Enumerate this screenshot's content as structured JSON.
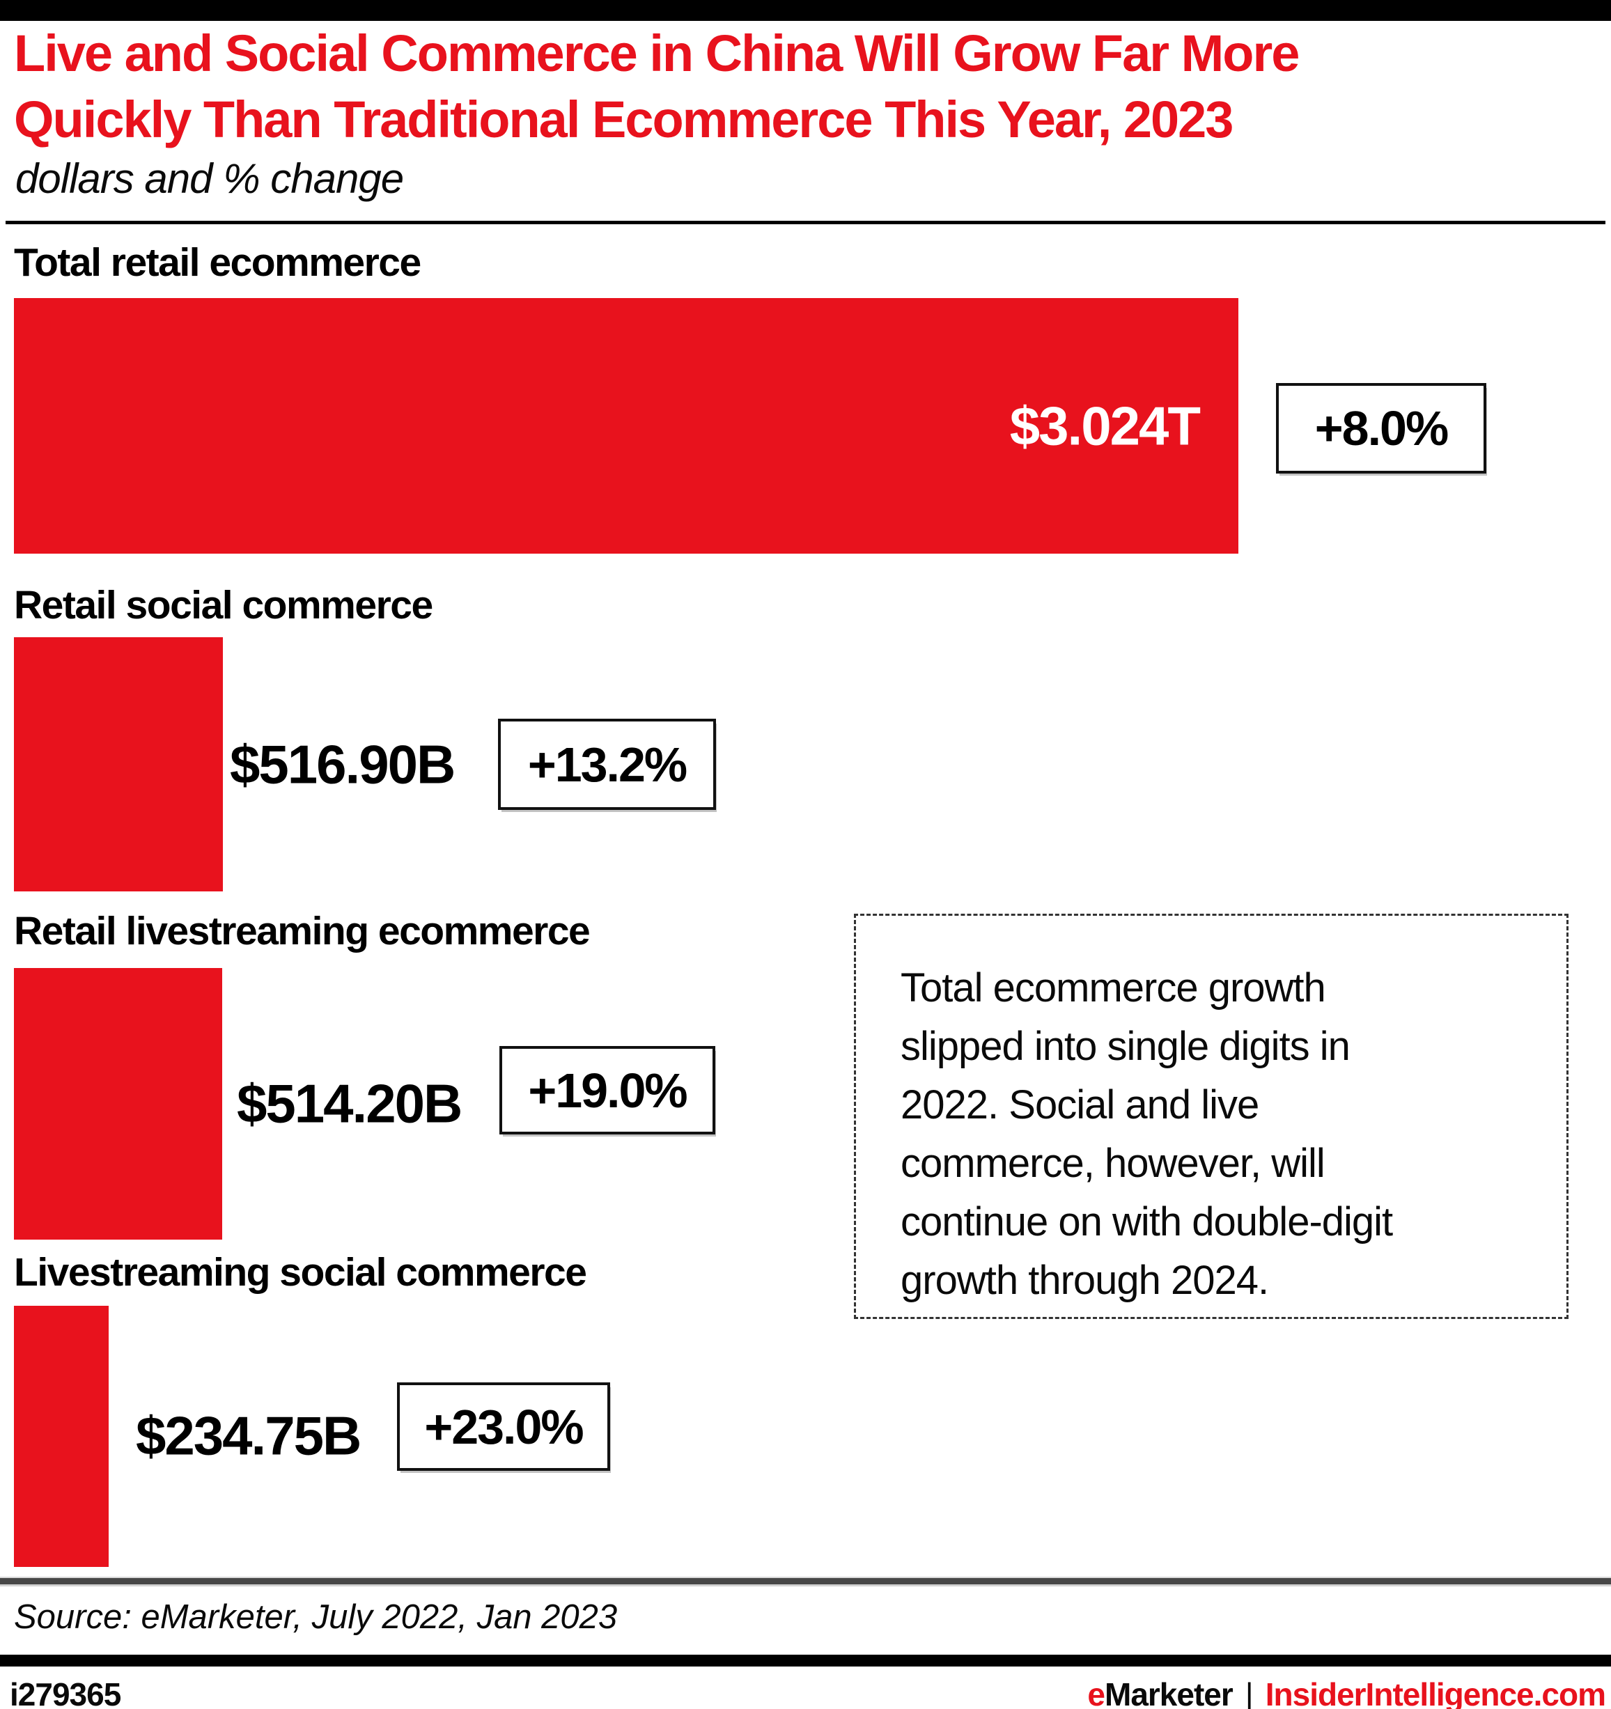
{
  "header": {
    "title_lines": [
      "Live and Social Commerce in China Will Grow Far More",
      "Quickly Than Traditional Ecommerce This Year, 2023"
    ],
    "subtitle": "dollars and % change",
    "title_color": "#e8121d"
  },
  "chart_data": {
    "type": "bar",
    "orientation": "horizontal",
    "title": "Live and Social Commerce in China Will Grow Far More Quickly Than Traditional Ecommerce This Year, 2023",
    "subtitle": "dollars and % change",
    "categories": [
      "Total retail ecommerce",
      "Retail social commerce",
      "Retail livestreaming ecommerce",
      "Livestreaming social commerce"
    ],
    "values_billions_usd": [
      3024,
      516.9,
      514.2,
      234.75
    ],
    "value_labels": [
      "$3.024T",
      "$516.90B",
      "$514.20B",
      "$234.75B"
    ],
    "pct_change_values": [
      8.0,
      13.2,
      19.0,
      23.0
    ],
    "pct_change_labels": [
      "+8.0%",
      "+13.2%",
      "+19.0%",
      "+23.0%"
    ],
    "bar_color": "#e8121d",
    "grid": false,
    "legend": false,
    "xlim_billions": [
      0,
      3024
    ]
  },
  "callout": {
    "lines": [
      "Total ecommerce growth",
      "slipped into single digits in",
      "2022. Social and live",
      "commerce, however, will",
      "continue on with double-digit",
      "growth through 2024."
    ]
  },
  "source_line": "Source: eMarketer, July 2022, Jan 2023",
  "footer": {
    "chart_id": "i279365",
    "brand_e": "e",
    "brand_rest": "Marketer",
    "separator": "|",
    "site": "InsiderIntelligence.com",
    "brand_red": "#e8121d"
  }
}
